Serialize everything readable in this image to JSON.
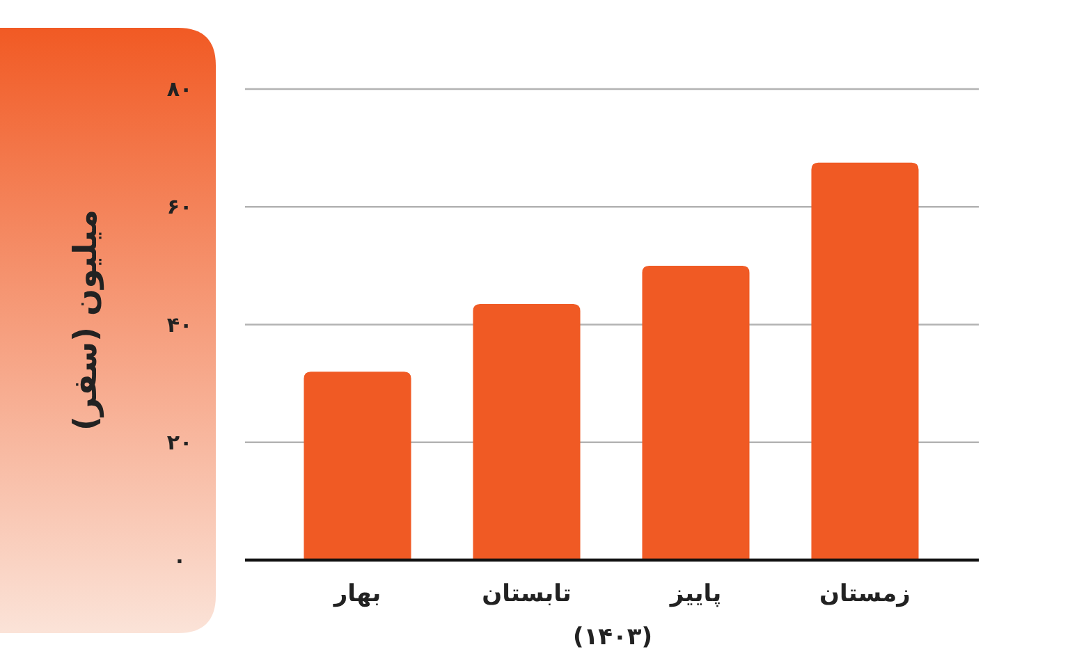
{
  "chart_data": {
    "type": "bar",
    "ylabel": "میلیون (سفر)",
    "xlabel": "(۱۴۰۳)",
    "categories": [
      "بهار",
      "تابستان",
      "پاییز",
      "زمستان"
    ],
    "values": [
      32,
      43.5,
      50,
      67.5
    ],
    "color": "#f05a24",
    "ylim": [
      0,
      80
    ],
    "yticks": [
      {
        "value": 0,
        "label": "۰"
      },
      {
        "value": 20,
        "label": "۲۰"
      },
      {
        "value": 40,
        "label": "۴۰"
      },
      {
        "value": 60,
        "label": "۶۰"
      },
      {
        "value": 80,
        "label": "۸۰"
      }
    ],
    "grid": "y"
  }
}
